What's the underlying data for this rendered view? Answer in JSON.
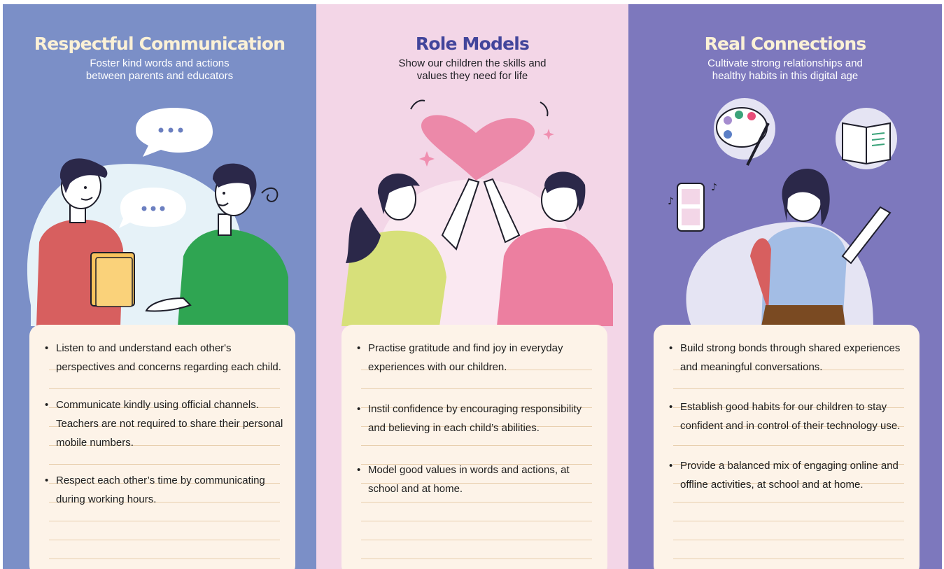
{
  "columns": [
    {
      "title": "Respectful Communication",
      "subtitle_lines": [
        "Foster kind words and actions",
        "between parents and educators"
      ],
      "bullets": [
        "Listen to and understand each other's perspectives and concerns regarding each child.",
        "Communicate kindly using official channels. Teachers are not required to share their personal mobile numbers.",
        "Respect each other’s time by communicating during working hours."
      ],
      "illustration": "two-people-talking-with-speech-bubbles",
      "background": "#7b8fc7"
    },
    {
      "title": "Role Models",
      "subtitle_lines": [
        "Show our children the skills and",
        "values they need for life"
      ],
      "bullets": [
        "Practise gratitude and find joy in everyday experiences with our children.",
        "Instil confidence by encouraging responsibility and believing in each child’s abilities.",
        "Model good values in words and actions, at school and at home."
      ],
      "illustration": "two-women-high-five-under-heart",
      "background": "#f3d6e7"
    },
    {
      "title": "Real Connections",
      "subtitle_lines": [
        "Cultivate strong relationships and",
        "healthy habits in this digital age"
      ],
      "bullets": [
        "Build strong bonds through shared experiences and meaningful conversations.",
        "Establish good habits for our children to stay confident and in control of their technology use.",
        "Provide a balanced mix of engaging online and offline activities, at school and at home."
      ],
      "illustration": "girl-with-palette-book-and-phone-icons",
      "background": "#7d78bd"
    }
  ]
}
